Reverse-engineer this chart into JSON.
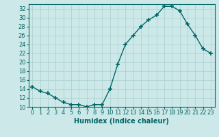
{
  "x": [
    0,
    1,
    2,
    3,
    4,
    5,
    6,
    7,
    8,
    9,
    10,
    11,
    12,
    13,
    14,
    15,
    16,
    17,
    18,
    19,
    20,
    21,
    22,
    23
  ],
  "y": [
    14.5,
    13.5,
    13.0,
    12.0,
    11.0,
    10.5,
    10.5,
    10.0,
    10.5,
    10.5,
    14.0,
    19.5,
    24.0,
    26.0,
    28.0,
    29.5,
    30.5,
    32.5,
    32.5,
    31.5,
    28.5,
    26.0,
    23.0,
    22.0
  ],
  "line_color": "#006666",
  "marker": "+",
  "marker_size": 4,
  "marker_linewidth": 1.2,
  "line_width": 1.0,
  "bg_color": "#cce8e8",
  "grid_color": "#aacfcf",
  "xlabel": "Humidex (Indice chaleur)",
  "xlabel_fontsize": 7,
  "tick_fontsize": 6,
  "ylim": [
    10,
    33
  ],
  "xlim": [
    -0.5,
    23.5
  ],
  "yticks": [
    10,
    12,
    14,
    16,
    18,
    20,
    22,
    24,
    26,
    28,
    30,
    32
  ],
  "xticks": [
    0,
    1,
    2,
    3,
    4,
    5,
    6,
    7,
    8,
    9,
    10,
    11,
    12,
    13,
    14,
    15,
    16,
    17,
    18,
    19,
    20,
    21,
    22,
    23
  ]
}
